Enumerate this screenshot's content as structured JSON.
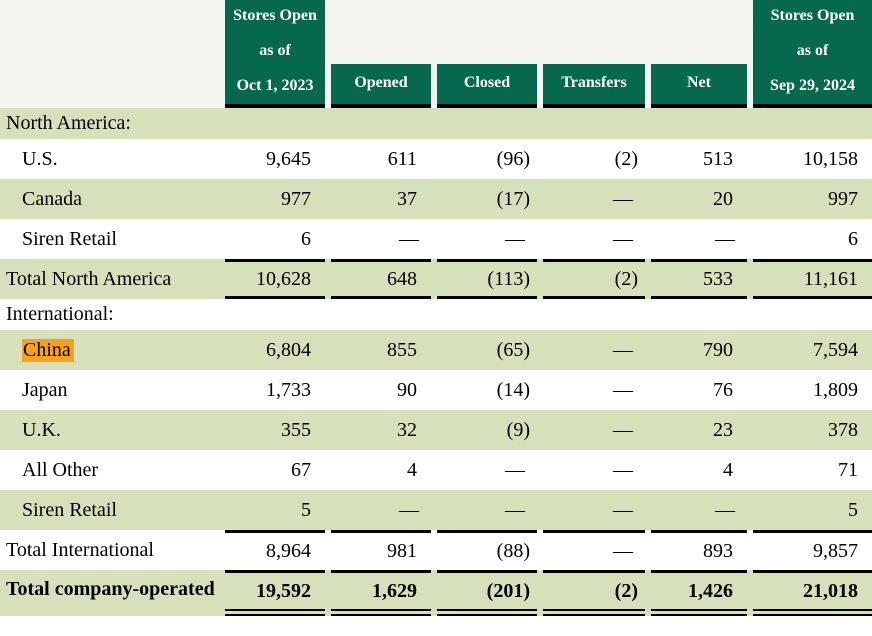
{
  "colors": {
    "header_green": "#06684C",
    "row_green": "#D6E0BB",
    "header_band_gray": "#F4F4F1",
    "highlight_orange": "#F8A11B",
    "border_black": "#000000",
    "header_text": "#FFFFFF",
    "body_text": "#000000"
  },
  "table": {
    "columns": [
      {
        "id": "open-oct-1-2023",
        "lines": [
          "Stores Open",
          "as of",
          "Oct 1, 2023"
        ]
      },
      {
        "id": "opened",
        "lines": [
          "Opened"
        ]
      },
      {
        "id": "closed",
        "lines": [
          "Closed"
        ]
      },
      {
        "id": "transfers",
        "lines": [
          "Transfers"
        ]
      },
      {
        "id": "net",
        "lines": [
          "Net"
        ]
      },
      {
        "id": "open-sep-29-2024",
        "lines": [
          "Stores Open",
          "as of",
          "Sep 29, 2024"
        ]
      }
    ],
    "rows": [
      {
        "label": "North America:",
        "type": "section",
        "shaded": true,
        "indent": 0,
        "values": [
          "",
          "",
          "",
          "",
          "",
          ""
        ]
      },
      {
        "label": "U.S.",
        "type": "item",
        "shaded": false,
        "indent": 1,
        "values": [
          "9,645",
          "611",
          "(96)",
          "(2)",
          "513",
          "10,158"
        ]
      },
      {
        "label": "Canada",
        "type": "item",
        "shaded": true,
        "indent": 1,
        "values": [
          "977",
          "37",
          "(17)",
          "—",
          "20",
          "997"
        ]
      },
      {
        "label": "Siren Retail",
        "type": "item",
        "shaded": false,
        "indent": 1,
        "values": [
          "6",
          "—",
          "—",
          "—",
          "—",
          "6"
        ]
      },
      {
        "label": "Total North America",
        "type": "subtotal",
        "shaded": true,
        "indent": 0,
        "borders": [
          "top",
          "bottom"
        ],
        "values": [
          "10,628",
          "648",
          "(113)",
          "(2)",
          "533",
          "11,161"
        ]
      },
      {
        "label": "International:",
        "type": "section",
        "shaded": false,
        "indent": 0,
        "values": [
          "",
          "",
          "",
          "",
          "",
          ""
        ]
      },
      {
        "label": "China",
        "type": "item",
        "shaded": true,
        "indent": 1,
        "highlighted": true,
        "values": [
          "6,804",
          "855",
          "(65)",
          "—",
          "790",
          "7,594"
        ]
      },
      {
        "label": "Japan",
        "type": "item",
        "shaded": false,
        "indent": 1,
        "values": [
          "1,733",
          "90",
          "(14)",
          "—",
          "76",
          "1,809"
        ]
      },
      {
        "label": "U.K.",
        "type": "item",
        "shaded": true,
        "indent": 1,
        "values": [
          "355",
          "32",
          "(9)",
          "—",
          "23",
          "378"
        ]
      },
      {
        "label": "All Other",
        "type": "item",
        "shaded": false,
        "indent": 1,
        "values": [
          "67",
          "4",
          "—",
          "—",
          "4",
          "71"
        ]
      },
      {
        "label": "Siren Retail",
        "type": "item",
        "shaded": true,
        "indent": 1,
        "values": [
          "5",
          "—",
          "—",
          "—",
          "—",
          "5"
        ]
      },
      {
        "label": "Total International",
        "type": "subtotal",
        "shaded": false,
        "indent": 0,
        "borders": [
          "top"
        ],
        "values": [
          "8,964",
          "981",
          "(88)",
          "—",
          "893",
          "9,857"
        ]
      },
      {
        "label": "Total company-operated",
        "type": "grand-total",
        "shaded": true,
        "indent": 0,
        "bold": true,
        "borders": [
          "top",
          "double-bottom"
        ],
        "values": [
          "19,592",
          "1,629",
          "(201)",
          "(2)",
          "1,426",
          "21,018"
        ]
      }
    ]
  }
}
